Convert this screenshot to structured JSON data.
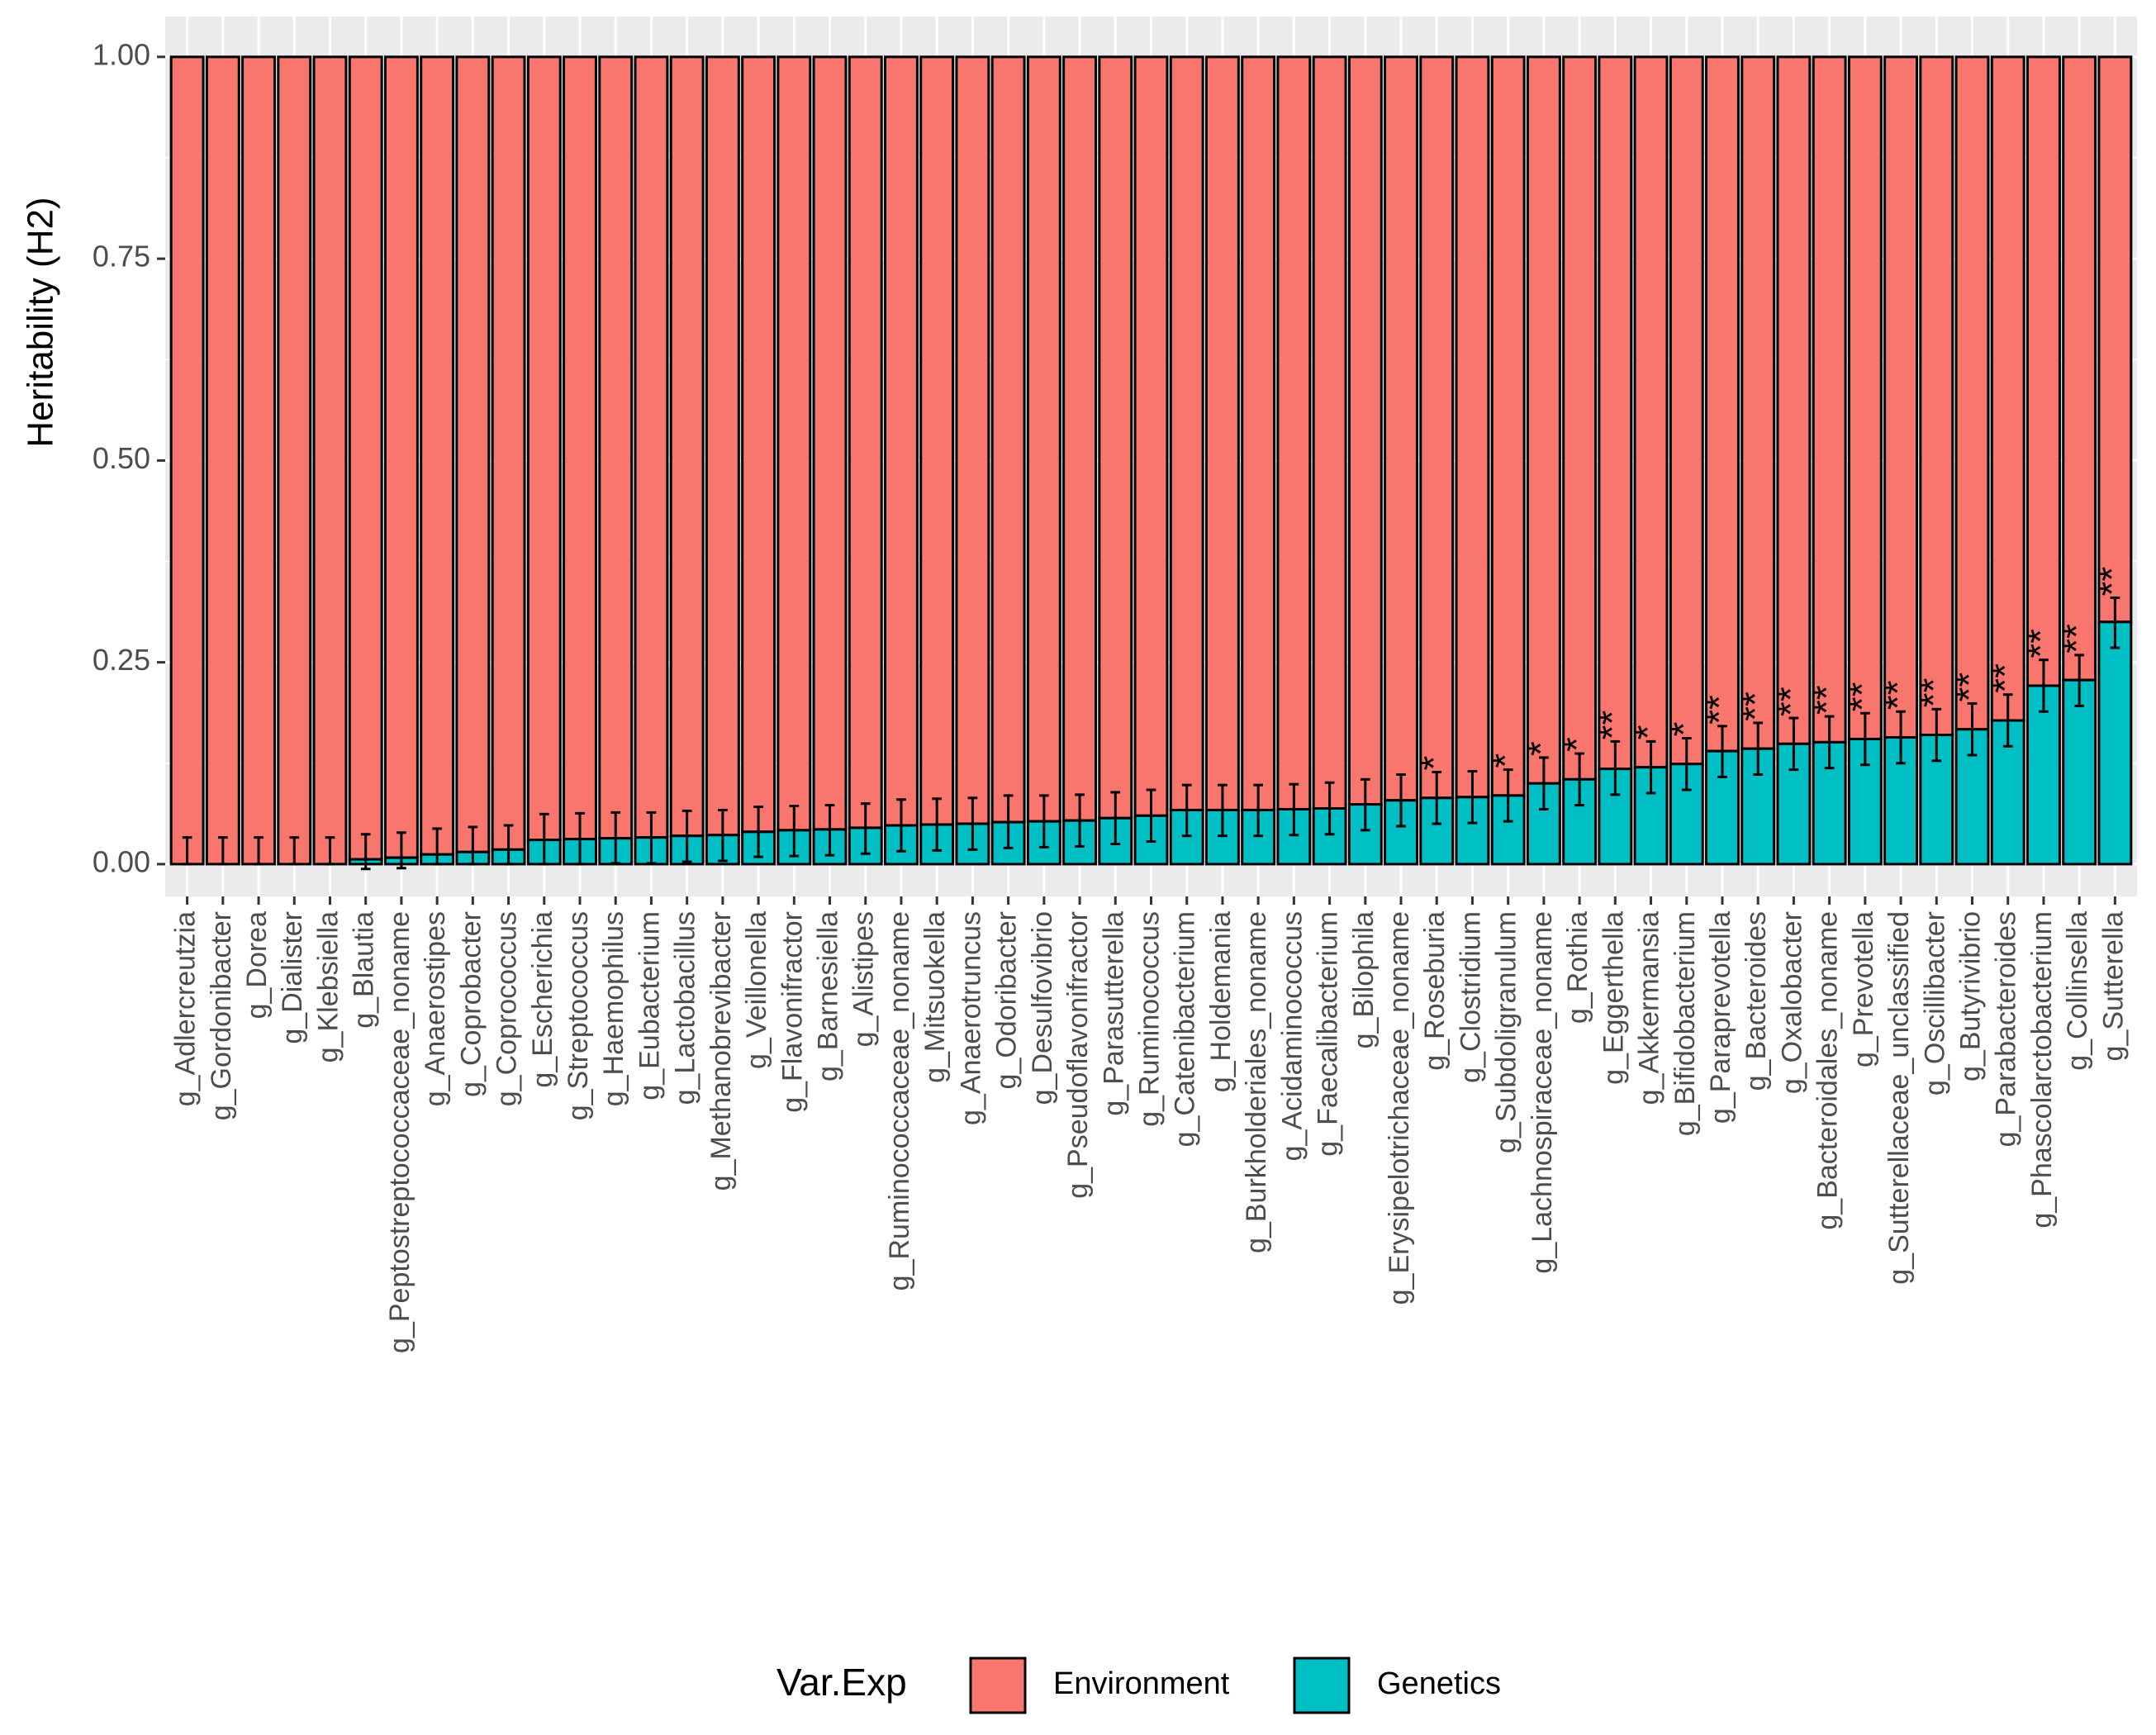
{
  "chart_data": {
    "type": "bar",
    "stacked": true,
    "ylabel": "Heritability (H2)",
    "xlabel": "",
    "ylim": [
      -0.04,
      1.05
    ],
    "yticks": [
      "0.00",
      "0.25",
      "0.50",
      "0.75",
      "1.00"
    ],
    "grid": true,
    "legend": {
      "title": "Var.Exp",
      "placement": "bottom"
    },
    "categories": [
      "g_Adlercreutzia",
      "g_Gordonibacter",
      "g_Dorea",
      "g_Dialister",
      "g_Klebsiella",
      "g_Blautia",
      "g_Peptostreptococcaceae_noname",
      "g_Anaerostipes",
      "g_Coprobacter",
      "g_Coprococcus",
      "g_Escherichia",
      "g_Streptococcus",
      "g_Haemophilus",
      "g_Eubacterium",
      "g_Lactobacillus",
      "g_Methanobrevibacter",
      "g_Veillonella",
      "g_Flavonifractor",
      "g_Barnesiella",
      "g_Alistipes",
      "g_Ruminococcaceae_noname",
      "g_Mitsuokella",
      "g_Anaerotruncus",
      "g_Odoribacter",
      "g_Desulfovibrio",
      "g_Pseudoflavonifractor",
      "g_Parasutterella",
      "g_Ruminococcus",
      "g_Catenibacterium",
      "g_Holdemania",
      "g_Burkholderiales_noname",
      "g_Acidaminococcus",
      "g_Faecalibacterium",
      "g_Bilophila",
      "g_Erysipelotrichaceae_noname",
      "g_Roseburia",
      "g_Clostridium",
      "g_Subdoligranulum",
      "g_Lachnospiraceae_noname",
      "g_Rothia",
      "g_Eggerthella",
      "g_Akkermansia",
      "g_Bifidobacterium",
      "g_Paraprevotella",
      "g_Bacteroides",
      "g_Oxalobacter",
      "g_Bacteroidales_noname",
      "g_Prevotella",
      "g_Sutterellaceae_unclassified",
      "g_Oscillibacter",
      "g_Butyrivibrio",
      "g_Parabacteroides",
      "g_Phascolarctobacterium",
      "g_Collinsella",
      "g_Sutterella"
    ],
    "series": [
      {
        "name": "Environment",
        "color": "#F8766D",
        "values": [
          1.0,
          1.0,
          1.0,
          1.0,
          1.0,
          0.994,
          0.992,
          0.988,
          0.985,
          0.982,
          0.97,
          0.969,
          0.968,
          0.967,
          0.965,
          0.964,
          0.96,
          0.958,
          0.957,
          0.955,
          0.952,
          0.951,
          0.95,
          0.948,
          0.947,
          0.946,
          0.943,
          0.94,
          0.933,
          0.933,
          0.933,
          0.932,
          0.931,
          0.926,
          0.921,
          0.918,
          0.917,
          0.915,
          0.9,
          0.895,
          0.882,
          0.88,
          0.876,
          0.86,
          0.857,
          0.851,
          0.849,
          0.845,
          0.843,
          0.84,
          0.833,
          0.822,
          0.779,
          0.772,
          0.7
        ]
      },
      {
        "name": "Genetics",
        "color": "#00BFC4",
        "values": [
          0.0,
          0.0,
          0.0,
          0.0,
          0.0,
          0.006,
          0.008,
          0.012,
          0.015,
          0.018,
          0.03,
          0.031,
          0.032,
          0.033,
          0.035,
          0.036,
          0.04,
          0.042,
          0.043,
          0.045,
          0.048,
          0.049,
          0.05,
          0.052,
          0.053,
          0.054,
          0.057,
          0.06,
          0.067,
          0.067,
          0.067,
          0.068,
          0.069,
          0.074,
          0.079,
          0.082,
          0.083,
          0.085,
          0.1,
          0.105,
          0.118,
          0.12,
          0.124,
          0.14,
          0.143,
          0.149,
          0.151,
          0.155,
          0.157,
          0.16,
          0.167,
          0.178,
          0.221,
          0.228,
          0.3
        ]
      }
    ],
    "error_bars": {
      "applies_to": "Genetics",
      "upper": [
        0.033,
        0.033,
        0.033,
        0.033,
        0.033,
        0.037,
        0.039,
        0.044,
        0.046,
        0.048,
        0.062,
        0.063,
        0.064,
        0.064,
        0.066,
        0.067,
        0.071,
        0.072,
        0.073,
        0.075,
        0.08,
        0.081,
        0.082,
        0.085,
        0.085,
        0.086,
        0.089,
        0.092,
        0.098,
        0.098,
        0.098,
        0.099,
        0.101,
        0.105,
        0.111,
        0.114,
        0.115,
        0.117,
        0.132,
        0.137,
        0.152,
        0.152,
        0.156,
        0.171,
        0.175,
        0.181,
        0.183,
        0.187,
        0.189,
        0.192,
        0.199,
        0.21,
        0.253,
        0.259,
        0.33
      ],
      "lower": [
        0.0,
        0.0,
        0.0,
        0.0,
        0.0,
        -0.006,
        -0.005,
        0.0,
        0.0,
        0.0,
        0.0,
        0.0,
        0.001,
        0.001,
        0.003,
        0.004,
        0.009,
        0.01,
        0.011,
        0.013,
        0.016,
        0.017,
        0.018,
        0.02,
        0.021,
        0.022,
        0.025,
        0.028,
        0.035,
        0.035,
        0.035,
        0.036,
        0.037,
        0.042,
        0.047,
        0.05,
        0.051,
        0.053,
        0.068,
        0.073,
        0.086,
        0.088,
        0.092,
        0.108,
        0.111,
        0.117,
        0.119,
        0.123,
        0.125,
        0.128,
        0.135,
        0.146,
        0.189,
        0.196,
        0.268
      ]
    },
    "significance": [
      "",
      "",
      "",
      "",
      "",
      "",
      "",
      "",
      "",
      "",
      "",
      "",
      "",
      "",
      "",
      "",
      "",
      "",
      "",
      "",
      "",
      "",
      "",
      "",
      "",
      "",
      "",
      "",
      "",
      "",
      "",
      "",
      "",
      "",
      "",
      "*",
      "",
      "*",
      "*",
      "*",
      "**",
      "*",
      "*",
      "**",
      "**",
      "**",
      "**",
      "**",
      "**",
      "**",
      "**",
      "**",
      "**",
      "**",
      "**"
    ]
  },
  "theme": {
    "panel_bg": "#EBEBEB",
    "grid_color": "#FFFFFF",
    "bar_outline": "#000000"
  }
}
